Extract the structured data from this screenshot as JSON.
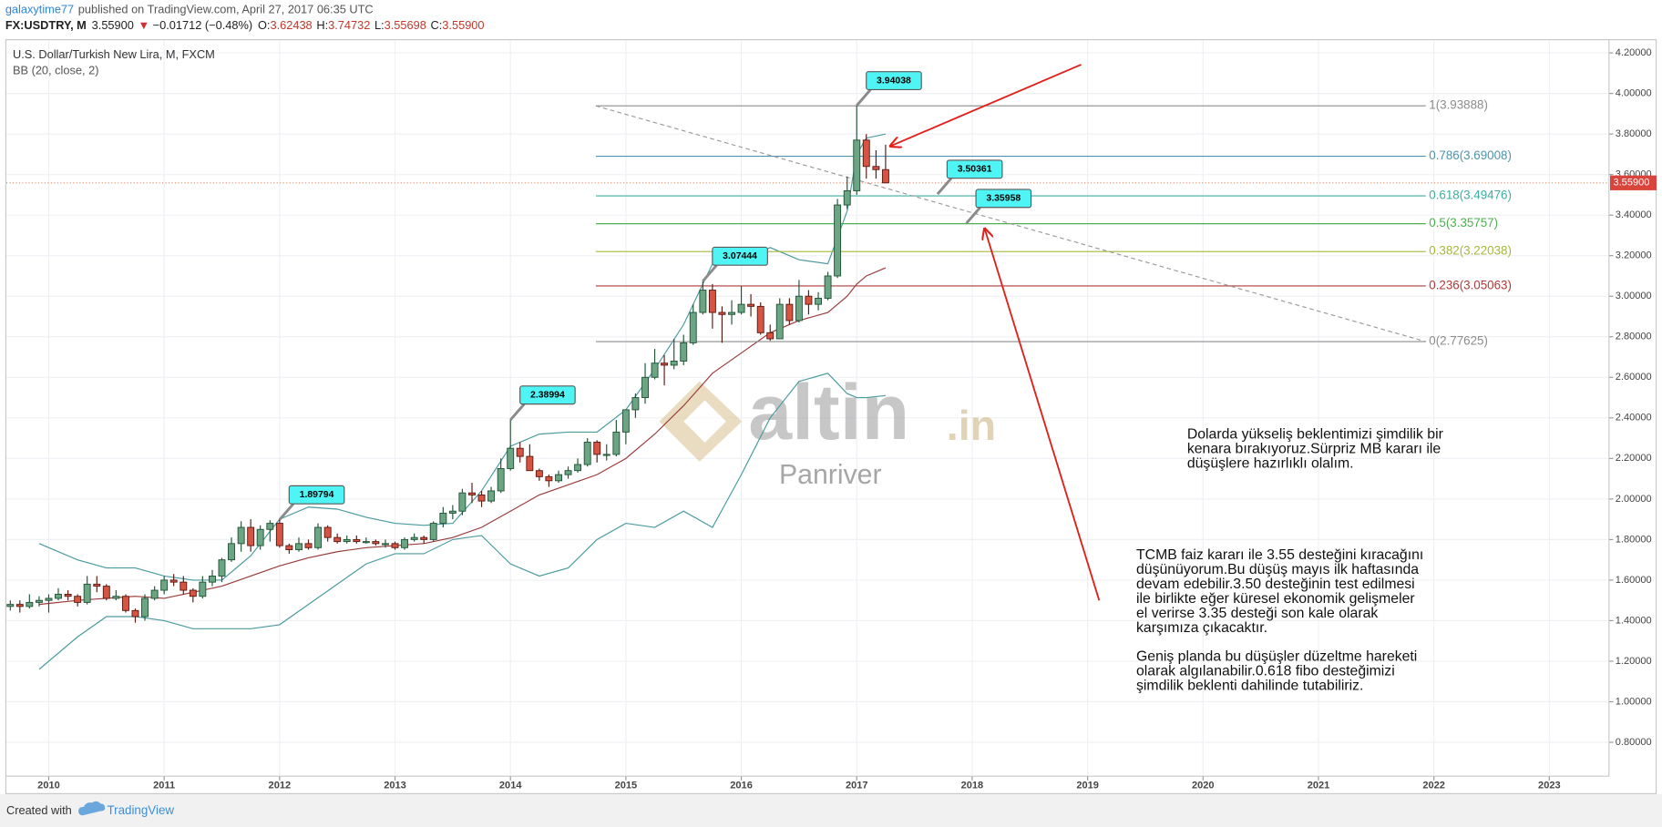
{
  "header": {
    "author": "galaxytime77",
    "published": "published on TradingView.com, April 27, 2017 06:35 UTC"
  },
  "symbol_bar": {
    "symbol": "FX:USDTRY, M",
    "price": "3.55900",
    "arrow": "▼",
    "change": "−0.01712 (−0.48%)",
    "open_label": "O:",
    "open": "3.62438",
    "high_label": "H:",
    "high": "3.74732",
    "low_label": "L:",
    "low": "3.55698",
    "close_label": "C:",
    "close": "3.55900"
  },
  "chart_data": {
    "type": "candlestick",
    "title": "U.S. Dollar/Turkish New Lira, M, FXCM",
    "indicator_label": "BB (20, close, 2)",
    "up_color": "#6ba583",
    "up_border": "#225437",
    "down_color": "#d75442",
    "down_border": "#5b1a13",
    "grid": true,
    "xlim": [
      2009.633,
      2023.517
    ],
    "xticks": [
      2010,
      2011,
      2012,
      2013,
      2014,
      2015,
      2016,
      2017,
      2018,
      2019,
      2020,
      2021,
      2022,
      2023
    ],
    "ylim": [
      0.633,
      4.252
    ],
    "yticks": [
      {
        "value": 0.8,
        "label": "0.80000"
      },
      {
        "value": 1.0,
        "label": "1.00000"
      },
      {
        "value": 1.2,
        "label": "1.20000"
      },
      {
        "value": 1.4,
        "label": "1.40000"
      },
      {
        "value": 1.6,
        "label": "1.60000"
      },
      {
        "value": 1.8,
        "label": "1.80000"
      },
      {
        "value": 2.0,
        "label": "2.00000"
      },
      {
        "value": 2.2,
        "label": "2.20000"
      },
      {
        "value": 2.4,
        "label": "2.40000"
      },
      {
        "value": 2.6,
        "label": "2.60000"
      },
      {
        "value": 2.8,
        "label": "2.80000"
      },
      {
        "value": 3.0,
        "label": "3.00000"
      },
      {
        "value": 3.2,
        "label": "3.20000"
      },
      {
        "value": 3.4,
        "label": "3.40000"
      },
      {
        "value": 3.6,
        "label": "3.60000"
      },
      {
        "value": 3.8,
        "label": "3.80000"
      },
      {
        "value": 4.0,
        "label": "4.00000"
      },
      {
        "value": 4.2,
        "label": "4.20000"
      }
    ],
    "x": [
      2009.667,
      2009.75,
      2009.833,
      2009.917,
      2010,
      2010.083,
      2010.167,
      2010.25,
      2010.333,
      2010.417,
      2010.5,
      2010.583,
      2010.667,
      2010.75,
      2010.833,
      2010.917,
      2011,
      2011.083,
      2011.167,
      2011.25,
      2011.333,
      2011.417,
      2011.5,
      2011.583,
      2011.667,
      2011.75,
      2011.833,
      2011.917,
      2012,
      2012.083,
      2012.167,
      2012.25,
      2012.333,
      2012.417,
      2012.5,
      2012.583,
      2012.667,
      2012.75,
      2012.833,
      2012.917,
      2013,
      2013.083,
      2013.167,
      2013.25,
      2013.333,
      2013.417,
      2013.5,
      2013.583,
      2013.667,
      2013.75,
      2013.833,
      2013.917,
      2014,
      2014.083,
      2014.167,
      2014.25,
      2014.333,
      2014.417,
      2014.5,
      2014.583,
      2014.667,
      2014.75,
      2014.833,
      2014.917,
      2015,
      2015.083,
      2015.167,
      2015.25,
      2015.333,
      2015.417,
      2015.5,
      2015.583,
      2015.667,
      2015.75,
      2015.833,
      2015.917,
      2016,
      2016.083,
      2016.167,
      2016.25,
      2016.333,
      2016.417,
      2016.5,
      2016.583,
      2016.667,
      2016.75,
      2016.833,
      2016.917,
      2017,
      2017.083,
      2017.167,
      2017.25
    ],
    "open": [
      1.47,
      1.48,
      1.47,
      1.49,
      1.5,
      1.51,
      1.53,
      1.52,
      1.49,
      1.58,
      1.57,
      1.51,
      1.52,
      1.45,
      1.42,
      1.51,
      1.55,
      1.6,
      1.59,
      1.55,
      1.52,
      1.59,
      1.62,
      1.7,
      1.78,
      1.86,
      1.77,
      1.85,
      1.88,
      1.77,
      1.75,
      1.78,
      1.76,
      1.86,
      1.81,
      1.79,
      1.8,
      1.79,
      1.79,
      1.78,
      1.78,
      1.76,
      1.8,
      1.81,
      1.8,
      1.88,
      1.93,
      1.94,
      2.03,
      2.02,
      1.99,
      2.04,
      2.15,
      2.25,
      2.21,
      2.14,
      2.11,
      2.09,
      2.12,
      2.14,
      2.17,
      2.28,
      2.22,
      2.22,
      2.33,
      2.44,
      2.5,
      2.6,
      2.67,
      2.66,
      2.68,
      2.77,
      2.92,
      3.03,
      2.92,
      2.91,
      2.92,
      2.96,
      2.95,
      2.82,
      2.79,
      2.96,
      2.88,
      3.0,
      2.96,
      2.99,
      3.1,
      3.45,
      3.52,
      3.77,
      3.64,
      3.62438
    ],
    "high": [
      1.5,
      1.5,
      1.53,
      1.52,
      1.53,
      1.56,
      1.55,
      1.53,
      1.62,
      1.62,
      1.58,
      1.55,
      1.53,
      1.46,
      1.53,
      1.57,
      1.62,
      1.63,
      1.62,
      1.56,
      1.62,
      1.65,
      1.71,
      1.81,
      1.89,
      1.9,
      1.87,
      1.895,
      1.89794,
      1.78,
      1.81,
      1.8,
      1.88,
      1.87,
      1.83,
      1.82,
      1.82,
      1.81,
      1.8,
      1.8,
      1.79,
      1.81,
      1.83,
      1.82,
      1.89,
      1.96,
      1.97,
      2.05,
      2.08,
      2.04,
      2.06,
      2.2,
      2.38994,
      2.28,
      2.27,
      2.15,
      2.12,
      2.14,
      2.16,
      2.2,
      2.3,
      2.29,
      2.27,
      2.39,
      2.44,
      2.52,
      2.67,
      2.74,
      2.71,
      2.79,
      2.81,
      2.96,
      3.07444,
      3.06,
      2.95,
      2.98,
      3.05,
      3.01,
      2.97,
      2.86,
      2.99,
      2.99,
      3.08,
      3.03,
      3.02,
      3.12,
      3.48,
      3.59,
      3.94038,
      3.8,
      3.72,
      3.74732
    ],
    "low": [
      1.45,
      1.44,
      1.46,
      1.47,
      1.44,
      1.5,
      1.5,
      1.47,
      1.48,
      1.54,
      1.5,
      1.5,
      1.44,
      1.39,
      1.4,
      1.5,
      1.53,
      1.57,
      1.53,
      1.49,
      1.51,
      1.57,
      1.59,
      1.69,
      1.74,
      1.74,
      1.75,
      1.79,
      1.76,
      1.73,
      1.74,
      1.75,
      1.75,
      1.79,
      1.78,
      1.78,
      1.78,
      1.78,
      1.77,
      1.76,
      1.75,
      1.75,
      1.79,
      1.78,
      1.79,
      1.86,
      1.9,
      1.92,
      1.98,
      1.96,
      1.98,
      2.03,
      2.14,
      2.18,
      2.14,
      2.09,
      2.06,
      2.08,
      2.1,
      2.13,
      2.16,
      2.18,
      2.19,
      2.21,
      2.27,
      2.4,
      2.47,
      2.59,
      2.56,
      2.64,
      2.66,
      2.76,
      2.91,
      2.84,
      2.77,
      2.86,
      2.91,
      2.9,
      2.81,
      2.78,
      2.79,
      2.86,
      2.87,
      2.91,
      2.93,
      2.98,
      3.09,
      3.43,
      3.5,
      3.58,
      3.58,
      3.55698
    ],
    "close": [
      1.48,
      1.47,
      1.49,
      1.5,
      1.51,
      1.53,
      1.52,
      1.49,
      1.58,
      1.57,
      1.51,
      1.52,
      1.45,
      1.42,
      1.51,
      1.55,
      1.6,
      1.59,
      1.55,
      1.52,
      1.59,
      1.62,
      1.7,
      1.78,
      1.86,
      1.77,
      1.85,
      1.88,
      1.77,
      1.75,
      1.78,
      1.76,
      1.86,
      1.81,
      1.79,
      1.8,
      1.79,
      1.79,
      1.78,
      1.78,
      1.76,
      1.8,
      1.81,
      1.8,
      1.88,
      1.93,
      1.94,
      2.03,
      2.02,
      1.99,
      2.04,
      2.15,
      2.25,
      2.21,
      2.14,
      2.11,
      2.09,
      2.12,
      2.14,
      2.17,
      2.28,
      2.22,
      2.22,
      2.33,
      2.44,
      2.5,
      2.6,
      2.67,
      2.66,
      2.68,
      2.77,
      2.92,
      3.03,
      2.92,
      2.91,
      2.92,
      2.96,
      2.95,
      2.82,
      2.79,
      2.96,
      2.88,
      3.0,
      2.96,
      2.99,
      3.1,
      3.45,
      3.52,
      3.77,
      3.64,
      3.62438,
      3.559
    ],
    "bollinger": {
      "band_color": "#4a9a9e",
      "middle_color": "#9a3b3b",
      "x": [
        2009.917,
        2010.25,
        2010.5,
        2010.75,
        2011,
        2011.25,
        2011.5,
        2011.75,
        2012,
        2012.25,
        2012.5,
        2012.75,
        2013,
        2013.25,
        2013.5,
        2013.75,
        2014,
        2014.25,
        2014.5,
        2014.75,
        2015,
        2015.25,
        2015.5,
        2015.75,
        2016,
        2016.25,
        2016.5,
        2016.75,
        2016.917,
        2017,
        2017.083,
        2017.25
      ],
      "upper": [
        1.78,
        1.7,
        1.66,
        1.66,
        1.62,
        1.6,
        1.6,
        1.72,
        1.9,
        1.96,
        1.95,
        1.91,
        1.88,
        1.87,
        1.88,
        2.04,
        2.26,
        2.32,
        2.33,
        2.33,
        2.44,
        2.64,
        2.86,
        3.16,
        3.18,
        3.24,
        3.18,
        3.16,
        3.42,
        3.7,
        3.78,
        3.8
      ],
      "middle": [
        1.48,
        1.5,
        1.51,
        1.52,
        1.51,
        1.54,
        1.57,
        1.62,
        1.67,
        1.71,
        1.74,
        1.76,
        1.77,
        1.78,
        1.81,
        1.86,
        1.94,
        2.02,
        2.07,
        2.12,
        2.2,
        2.32,
        2.46,
        2.62,
        2.72,
        2.82,
        2.88,
        2.92,
        3.0,
        3.06,
        3.1,
        3.14
      ],
      "lower": [
        1.16,
        1.32,
        1.42,
        1.42,
        1.4,
        1.36,
        1.36,
        1.36,
        1.38,
        1.48,
        1.58,
        1.68,
        1.73,
        1.73,
        1.8,
        1.82,
        1.68,
        1.62,
        1.66,
        1.8,
        1.88,
        1.86,
        1.94,
        1.86,
        2.12,
        2.4,
        2.58,
        2.62,
        2.52,
        2.5,
        2.5,
        2.51
      ]
    },
    "fibonacci": {
      "x_start": 2014.74,
      "x_end": 2021.93,
      "levels": [
        {
          "label": "1(3.93888)",
          "value": 3.93888,
          "color": "#8c8c8c"
        },
        {
          "label": "0.786(3.69008)",
          "value": 3.69008,
          "color": "#4f94ad"
        },
        {
          "label": "0.618(3.49476)",
          "value": 3.49476,
          "color": "#3fae9f"
        },
        {
          "label": "0.5(3.35757)",
          "value": 3.35757,
          "color": "#4caf50"
        },
        {
          "label": "0.382(3.22038)",
          "value": 3.22038,
          "color": "#a5b83c"
        },
        {
          "label": "0.236(3.05063)",
          "value": 3.05063,
          "color": "#b03a3a"
        },
        {
          "label": "0(2.77625)",
          "value": 2.77625,
          "color": "#8c8c8c"
        }
      ]
    },
    "callouts": [
      {
        "x": 2012,
        "value": 1.89794
      },
      {
        "x": 2014,
        "value": 2.38994
      },
      {
        "x": 2015.667,
        "value": 3.07444
      },
      {
        "x": 2017,
        "value": 3.94038
      },
      {
        "x": 2017.7,
        "value": 3.50361
      },
      {
        "x": 2017.95,
        "value": 3.35958
      }
    ],
    "last_price": {
      "value": 3.559,
      "label": "3.55900",
      "color": "#d9453d"
    }
  },
  "watermark": {
    "brand": "altin",
    "tld": ".in",
    "name": "Panriver"
  },
  "notes": [
    {
      "lines": [
        "Dolarda yükseliş beklentimizi şimdilik bir",
        "kenara bırakıyoruz.Sürpriz MB kararı ile",
        "düşüşlere hazırlıklı olalım."
      ]
    },
    {
      "lines": [
        "TCMB faiz kararı ile 3.55 desteğini kıracağını",
        "düşünüyorum.Bu düşüş mayıs ilk haftasında",
        "devam edebilir.3.50 desteğinin test edilmesi",
        "ile birlikte eğer küresel ekonomik gelişmeler",
        "el verirse 3.35 desteği son kale olarak",
        "karşımıza çıkacaktır."
      ]
    },
    {
      "lines": [
        "Geniş planda bu düşüşler düzeltme hareketi",
        "olarak algılanabilir.0.618 fibo desteğimizi",
        "şimdilik beklenti dahilinde tutabiliriz."
      ]
    }
  ],
  "footer": {
    "created_with": "Created with",
    "brand": "TradingView"
  }
}
